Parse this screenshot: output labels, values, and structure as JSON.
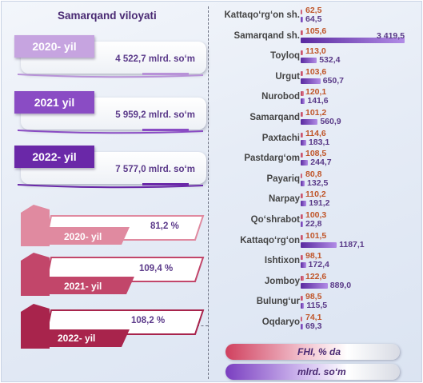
{
  "region_title": "Samarqand viloyati",
  "volume_cards": [
    {
      "year": "2020- yil",
      "amount": "4 522,7 mlrd. so‘m",
      "color": "#c6a4e0"
    },
    {
      "year": "2021 yil",
      "amount": "5 959,2 mlrd. so‘m",
      "color": "#8a4cc4"
    },
    {
      "year": "2022- yil",
      "amount": "7 577,0 mlrd. so‘m",
      "color": "#6a28a8"
    }
  ],
  "growth_cards": [
    {
      "year": "2020- yil",
      "value": "81,2 %",
      "color": "#e08aa0"
    },
    {
      "year": "2021- yil",
      "value": "109,4 %",
      "color": "#c2466a"
    },
    {
      "year": "2022- yil",
      "value": "108,2 %",
      "color": "#a8244c"
    }
  ],
  "chart_data": {
    "type": "bar",
    "categories": [
      "Kattaqo‘rg‘on sh.",
      "Samarqand sh.",
      "Toyloq",
      "Urgut",
      "Nurobod",
      "Samarqand",
      "Paxtachi",
      "Pastdarg‘om",
      "Payariq",
      "Narpay",
      "Qo‘shrabot",
      "Kattaqo‘rg‘on",
      "Ishtixon",
      "Jomboy",
      "Bulung‘ur",
      "Oqdaryo"
    ],
    "series": [
      {
        "name": "FHI, % da",
        "values": [
          62.5,
          105.6,
          113.0,
          103.6,
          120.1,
          101.2,
          114.6,
          108.5,
          80.8,
          110.2,
          100.3,
          101.5,
          98.1,
          122.6,
          98.5,
          74.1
        ],
        "labels": [
          "62,5",
          "105,6",
          "113,0",
          "103,6",
          "120,1",
          "101,2",
          "114,6",
          "108,5",
          "80,8",
          "110,2",
          "100,3",
          "101,5",
          "98,1",
          "122,6",
          "98,5",
          "74,1"
        ],
        "color": "#d0405e"
      },
      {
        "name": "mlrd. so‘m",
        "values": [
          64.5,
          3419.5,
          532.4,
          650.7,
          141.6,
          560.9,
          183.1,
          244.7,
          132.5,
          191.2,
          22.8,
          1187.1,
          172.4,
          889.0,
          115.5,
          69.3
        ],
        "labels": [
          "64,5",
          "3 419,5",
          "532,4",
          "650,7",
          "141,6",
          "560,9",
          "183,1",
          "244,7",
          "132,5",
          "191,2",
          "22,8",
          "1187,1",
          "172,4",
          "889,0",
          "115,5",
          "69,3"
        ],
        "color": "#7a3ec0"
      }
    ]
  },
  "legend": {
    "pct_label": "FHI, % da",
    "vol_label": "mlrd. so‘m"
  }
}
